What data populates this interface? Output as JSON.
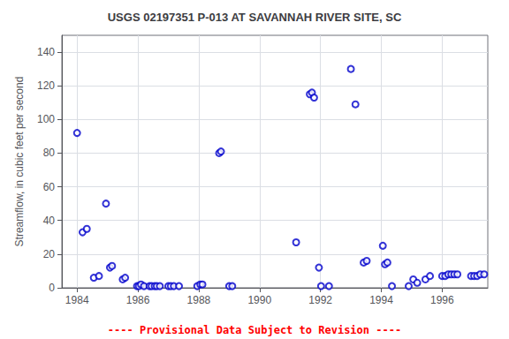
{
  "chart_data": {
    "type": "scatter",
    "title": "USGS 02197351 P-013 AT SAVANNAH RIVER SITE, SC",
    "ylabel": "Streamflow, in cubic feet per second",
    "annotations": [
      {
        "text": "---- Provisional Data Subject to Revision ----",
        "color": "#ff0000"
      }
    ],
    "xlim": [
      1983.5,
      1997.5
    ],
    "ylim": [
      0,
      150
    ],
    "xticks": [
      1984,
      1986,
      1988,
      1990,
      1992,
      1994,
      1996
    ],
    "yticks": [
      0,
      20,
      40,
      60,
      80,
      100,
      120,
      140
    ],
    "grid": true,
    "color": "#0000CC",
    "marker": "open_circle",
    "x": [
      1984.0,
      1984.18,
      1984.32,
      1984.55,
      1984.72,
      1984.95,
      1985.08,
      1985.15,
      1985.5,
      1985.58,
      1985.97,
      1986.03,
      1986.1,
      1986.2,
      1986.38,
      1986.45,
      1986.55,
      1986.62,
      1986.72,
      1987.0,
      1987.08,
      1987.18,
      1987.35,
      1987.95,
      1988.05,
      1988.12,
      1988.67,
      1988.73,
      1989.0,
      1989.1,
      1991.2,
      1991.65,
      1991.72,
      1991.79,
      1991.95,
      1992.02,
      1992.28,
      1993.0,
      1993.15,
      1993.42,
      1993.52,
      1994.05,
      1994.12,
      1994.2,
      1994.35,
      1994.9,
      1995.05,
      1995.18,
      1995.45,
      1995.6,
      1996.0,
      1996.1,
      1996.2,
      1996.3,
      1996.4,
      1996.5,
      1996.95,
      1997.05,
      1997.15,
      1997.25,
      1997.38
    ],
    "values": [
      92,
      33,
      35,
      6,
      7,
      50,
      12,
      13,
      5,
      6,
      1,
      1,
      2,
      1,
      1,
      1,
      1,
      1,
      1,
      1,
      1,
      1,
      1,
      1,
      2,
      2,
      80,
      81,
      1,
      1,
      27,
      115,
      116,
      113,
      12,
      1,
      1,
      130,
      109,
      15,
      16,
      25,
      14,
      15,
      1,
      1,
      5,
      3,
      5,
      7,
      7,
      7,
      8,
      8,
      8,
      8,
      7,
      7,
      7,
      8,
      8
    ]
  }
}
